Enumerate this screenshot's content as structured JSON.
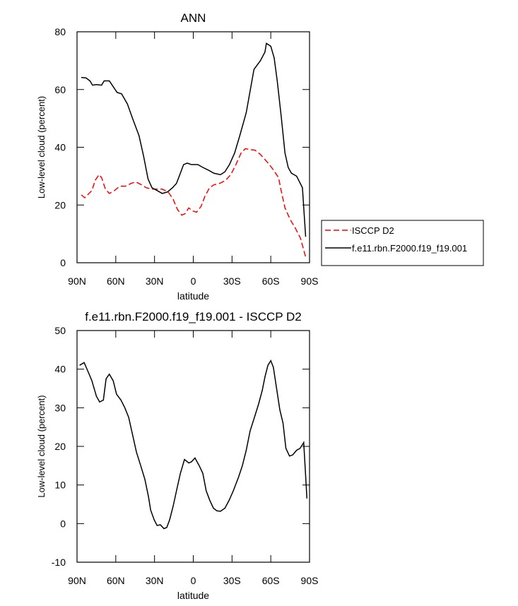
{
  "chart_data": [
    {
      "type": "line",
      "title": "ANN",
      "xlabel": "latitude",
      "ylabel": "Low-level cloud (percent)",
      "xlim": [
        90,
        -90
      ],
      "xticks": [
        {
          "value": 90,
          "label": "90N"
        },
        {
          "value": 60,
          "label": "60N"
        },
        {
          "value": 30,
          "label": "30N"
        },
        0,
        {
          "value": -30,
          "label": "30S"
        },
        {
          "value": -60,
          "label": "60S"
        },
        {
          "value": -90,
          "label": "90S"
        }
      ],
      "ylim": [
        0,
        80
      ],
      "yticks": [
        0,
        20,
        40,
        60,
        80
      ],
      "legend": "right",
      "series": [
        {
          "name": "ISCCP D2",
          "color": "#ff0000",
          "dashed": true,
          "x": [
            86.7,
            84,
            80.7,
            78.5,
            76,
            73,
            71,
            68,
            65,
            61,
            57,
            52.5,
            48,
            44.6,
            40,
            36.5,
            32,
            28,
            24,
            19.4,
            15.6,
            12.3,
            9,
            6.3,
            3.5,
            0.8,
            -2.5,
            -6,
            -9,
            -12.6,
            -16,
            -20.5,
            -25,
            -29,
            -33,
            -37,
            -40.3,
            -44,
            -47.8,
            -52,
            -57,
            -61.5,
            -66,
            -68.5,
            -71,
            -75,
            -79,
            -83,
            -87
          ],
          "values": [
            23.5,
            22.5,
            24,
            25,
            28.5,
            30.5,
            29.5,
            25.5,
            24,
            25,
            26.5,
            26.5,
            27.5,
            28,
            27,
            26,
            25.5,
            25.5,
            25.5,
            24.5,
            22,
            18.5,
            16.5,
            17,
            19,
            18,
            17.5,
            19.5,
            23,
            26,
            27,
            27.5,
            28.5,
            30.5,
            34,
            38,
            39.5,
            39.2,
            39,
            37.5,
            35,
            32.5,
            29.5,
            24,
            19,
            15,
            12,
            8.5,
            2
          ]
        },
        {
          "name": "f.e11.rbn.F2000.f19_f19.001",
          "color": "#000000",
          "dashed": false,
          "x": [
            86.7,
            83,
            80,
            78,
            75,
            71,
            69,
            65,
            62,
            59,
            55.5,
            51,
            47,
            42,
            38.5,
            35,
            32,
            28,
            24,
            20,
            16,
            13,
            10,
            7.5,
            4.7,
            1.4,
            -3.5,
            -7.5,
            -12,
            -16,
            -21,
            -24.5,
            -28,
            -32,
            -36,
            -41,
            -45,
            -47,
            -52,
            -55.5,
            -56.6,
            -60,
            -62.6,
            -65,
            -68,
            -71,
            -73.5,
            -76,
            -80,
            -84.5,
            -87
          ],
          "values": [
            64.2,
            64,
            63,
            61.5,
            61.7,
            61.5,
            63,
            63,
            61,
            59,
            58.5,
            55,
            50,
            44,
            37,
            29,
            26,
            25,
            24,
            24.5,
            26,
            27.5,
            31,
            34,
            34.5,
            34,
            34,
            33,
            32,
            31,
            30.5,
            31.5,
            34,
            38,
            44,
            52,
            62,
            67,
            70,
            73,
            76,
            75,
            71,
            63,
            51,
            38,
            33,
            31,
            30,
            26,
            9
          ]
        }
      ]
    },
    {
      "type": "line",
      "title": "f.e11.rbn.F2000.f19_f19.001 - ISCCP D2",
      "xlabel": "latitude",
      "ylabel": "Low-level cloud (percent)",
      "xlim": [
        90,
        -90
      ],
      "xticks": [
        {
          "value": 90,
          "label": "90N"
        },
        {
          "value": 60,
          "label": "60N"
        },
        {
          "value": 30,
          "label": "30N"
        },
        0,
        {
          "value": -30,
          "label": "30S"
        },
        {
          "value": -60,
          "label": "60S"
        },
        {
          "value": -90,
          "label": "90S"
        }
      ],
      "ylim": [
        -10,
        50
      ],
      "yticks": [
        -10,
        0,
        10,
        20,
        30,
        40,
        50
      ],
      "series": [
        {
          "color": "#000000",
          "dashed": false,
          "x": [
            88,
            84.5,
            81,
            78.5,
            75,
            72.5,
            69.6,
            67.5,
            65,
            62,
            59.4,
            56,
            53,
            50,
            47,
            44,
            40.7,
            37.5,
            34.7,
            33,
            30.3,
            28,
            25.5,
            22.7,
            20.5,
            18.3,
            15.6,
            13,
            10,
            6.8,
            3.5,
            1.4,
            -1.3,
            -4.6,
            -7.4,
            -10,
            -12.8,
            -15.6,
            -18.3,
            -21,
            -24.5,
            -27.7,
            -31,
            -35,
            -38,
            -41,
            -44,
            -47.8,
            -50.6,
            -53.4,
            -55.5,
            -57.8,
            -60,
            -62,
            -64.5,
            -67,
            -69.5,
            -71.7,
            -74.5,
            -77,
            -80,
            -82.7,
            -85.5,
            -88
          ],
          "values": [
            41,
            41.7,
            39,
            37,
            33,
            31.5,
            32,
            37.5,
            38.7,
            37,
            33.5,
            32,
            30,
            27.5,
            23,
            18.5,
            15,
            11.5,
            7,
            3.5,
            1,
            -0.5,
            -0.3,
            -1.3,
            -1,
            1,
            4.5,
            8.5,
            13,
            16.6,
            15.7,
            16,
            17,
            15,
            13,
            8.5,
            6,
            4,
            3.3,
            3.2,
            4,
            6,
            8.5,
            12,
            15,
            19,
            24,
            28,
            31,
            34.5,
            38,
            41,
            42.2,
            40.5,
            35,
            29.5,
            26,
            19.5,
            17.5,
            17.8,
            19,
            19.5,
            21,
            6.5
          ]
        }
      ]
    }
  ]
}
